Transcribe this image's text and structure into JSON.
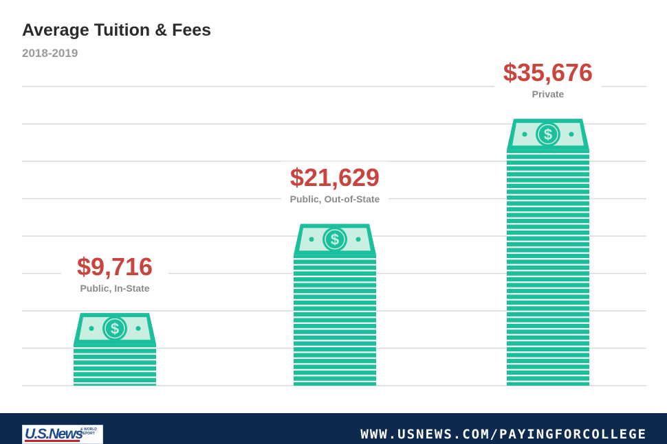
{
  "header": {
    "title": "Average Tuition & Fees",
    "subtitle": "2018-2019"
  },
  "colors": {
    "value_label": "#c8443c",
    "category_label": "#8a8a8a",
    "money_stack": "#1bbf9b",
    "money_stripe": "#ffffff",
    "bill_face": "#c9efe3",
    "gridline": "#d9d9d9",
    "footer_bg": "#0d2a4e"
  },
  "chart_data": {
    "type": "bar",
    "categories": [
      "Public, In-State",
      "Public, Out-of-State",
      "Private"
    ],
    "values": [
      9716,
      21629,
      35676
    ],
    "value_labels": [
      "$9,716",
      "$21,629",
      "$35,676"
    ],
    "title": "Average Tuition & Fees",
    "subtitle": "2018-2019",
    "xlabel": "",
    "ylabel": "",
    "ylim": [
      0,
      40000
    ],
    "grid": true,
    "legend": "none",
    "mark_style": "stack-of-dollar-bills-icon"
  },
  "footer": {
    "logo_main": "U.S.News",
    "logo_sub": "& WORLD REPORT",
    "url": "WWW.USNEWS.COM/PAYINGFORCOLLEGE"
  }
}
